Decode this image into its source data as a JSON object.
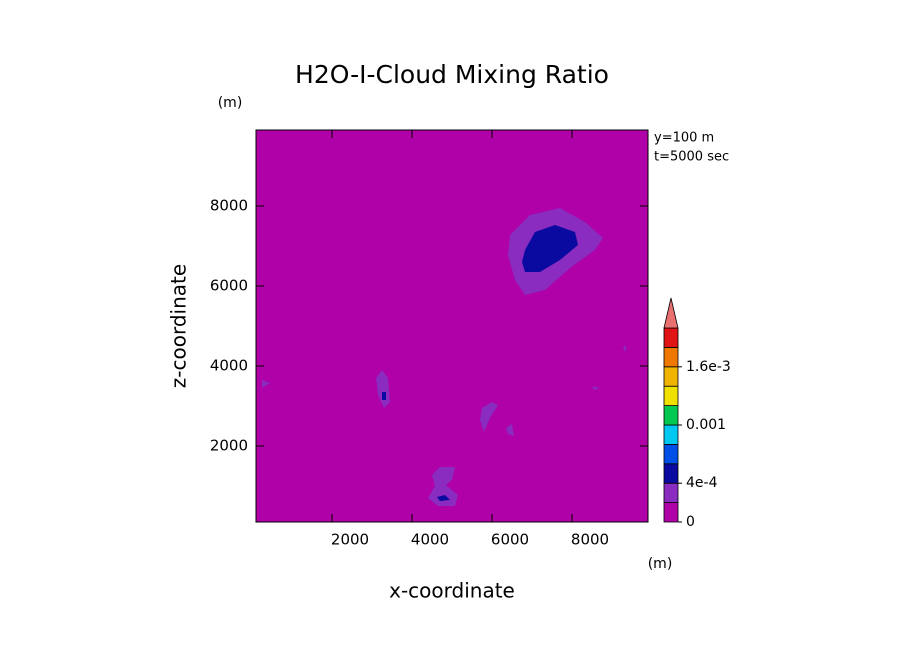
{
  "chart_data": {
    "type": "contour",
    "title": "H2O-I-Cloud Mixing Ratio",
    "x_label": "x-coordinate",
    "y_label": "z-coordinate",
    "x_unit": "(m)",
    "y_unit": "(m)",
    "annotations": [
      "y=100 m",
      "t=5000 sec"
    ],
    "xlim": [
      100,
      9900
    ],
    "ylim": [
      100,
      9900
    ],
    "xticks": [
      2000,
      4000,
      6000,
      8000
    ],
    "yticks": [
      2000,
      4000,
      6000,
      8000
    ],
    "levels": [
      0,
      0.0002,
      0.0004,
      0.0006,
      0.0008,
      0.001,
      0.0012,
      0.0014,
      0.0016,
      0.0018,
      0.002
    ],
    "colors": [
      "#b000a8",
      "#8a2cc0",
      "#0a0aa0",
      "#0050e8",
      "#00c8f0",
      "#00c850",
      "#f0e000",
      "#f0b400",
      "#f07800",
      "#e01414"
    ],
    "extend_color": "#e87070",
    "colorbar_ticks": [
      0,
      {
        "value": 0.0004,
        "label": "4e-4"
      },
      0.001,
      {
        "value": 0.0016,
        "label": "1.6e-3"
      }
    ],
    "contours": [
      {
        "level": 0.0002,
        "x": [
          6450,
          6950,
          7700,
          8325,
          8775,
          8575,
          7950,
          7325,
          6825,
          6575,
          6400
        ],
        "z": [
          7275,
          7775,
          7950,
          7600,
          7200,
          6900,
          6450,
          5900,
          5775,
          6150,
          6775
        ]
      },
      {
        "level": 0.0004,
        "x": [
          6825,
          7075,
          7575,
          8075,
          8150,
          7700,
          7200,
          6825,
          6750
        ],
        "z": [
          6900,
          7350,
          7525,
          7350,
          7025,
          6650,
          6350,
          6350,
          6600
        ]
      },
      {
        "level": 0.0002,
        "x": [
          3100,
          3250,
          3400,
          3450,
          3300,
          3150
        ],
        "z": [
          3700,
          3900,
          3700,
          3100,
          2950,
          3275
        ]
      },
      {
        "level": 0.0004,
        "x": [
          3250,
          3350,
          3350,
          3250
        ],
        "z": [
          3350,
          3350,
          3150,
          3150
        ]
      },
      {
        "level": 0.0002,
        "x": [
          5750,
          6000,
          6150,
          5950,
          5800,
          5700
        ],
        "z": [
          2950,
          3100,
          3025,
          2700,
          2350,
          2650
        ]
      },
      {
        "level": 0.0002,
        "x": [
          6350,
          6500,
          6550,
          6400
        ],
        "z": [
          2450,
          2550,
          2250,
          2300
        ]
      },
      {
        "level": 0.0002,
        "x": [
          4500,
          4700,
          5075,
          5000,
          4850,
          5150,
          5075,
          4650,
          4400,
          4575
        ],
        "z": [
          1275,
          1475,
          1475,
          1150,
          1025,
          775,
          500,
          500,
          700,
          1000
        ]
      },
      {
        "level": 0.0004,
        "x": [
          4625,
          4825,
          4950,
          4700
        ],
        "z": [
          725,
          775,
          650,
          625
        ]
      },
      {
        "level": 0.0002,
        "x": [
          250,
          450,
          250
        ],
        "z": [
          3650,
          3575,
          3450
        ]
      },
      {
        "level": 0.0002,
        "x": [
          8500,
          8700,
          8550
        ],
        "z": [
          3500,
          3450,
          3400
        ]
      },
      {
        "level": 0.0002,
        "x": [
          9275,
          9350,
          9350
        ],
        "z": [
          4450,
          4525,
          4350
        ]
      }
    ]
  }
}
